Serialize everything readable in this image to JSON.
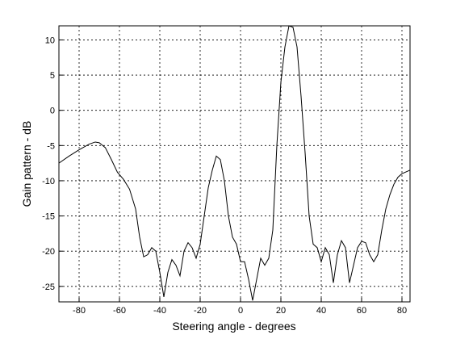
{
  "chart_data": {
    "type": "line",
    "xlabel": "Steering angle - degrees",
    "ylabel": "Gain pattern - dB",
    "x": [
      -90,
      -85,
      -80,
      -75,
      -72,
      -70,
      -67,
      -64,
      -61,
      -58,
      -55,
      -52,
      -50,
      -48,
      -46,
      -44,
      -42,
      -40,
      -38,
      -36,
      -34,
      -32,
      -30,
      -28,
      -26,
      -24,
      -22,
      -20,
      -18,
      -16,
      -14,
      -12,
      -10,
      -8,
      -6,
      -4,
      -2,
      0,
      2,
      4,
      6,
      8,
      10,
      12,
      14,
      16,
      18,
      20,
      22,
      24,
      26,
      28,
      30,
      32,
      34,
      36,
      38,
      40,
      42,
      44,
      46,
      48,
      50,
      52,
      54,
      56,
      58,
      60,
      62,
      64,
      66,
      68,
      70,
      72,
      74,
      76,
      78,
      80,
      84
    ],
    "series": [
      {
        "name": "Gain",
        "color": "#000000",
        "values": [
          -7.5,
          -6.5,
          -5.6,
          -4.8,
          -4.5,
          -4.6,
          -5.3,
          -7,
          -8.8,
          -9.8,
          -11.2,
          -14,
          -18,
          -20.8,
          -20.5,
          -19.5,
          -20,
          -23,
          -26.5,
          -23,
          -21.2,
          -22,
          -23.5,
          -20,
          -18.8,
          -19.5,
          -21,
          -19,
          -15,
          -11,
          -8.5,
          -6.5,
          -7,
          -10,
          -15,
          -18,
          -19,
          -21.5,
          -21.5,
          -24,
          -27,
          -24,
          -21,
          -22,
          -21,
          -17,
          -5,
          4,
          9,
          12,
          11.8,
          9,
          2,
          -6,
          -15,
          -19,
          -19.5,
          -21.5,
          -19.5,
          -20.5,
          -24.5,
          -20.5,
          -18.5,
          -19.5,
          -24.5,
          -22,
          -19.5,
          -18.6,
          -18.8,
          -20.5,
          -21.5,
          -20.5,
          -17,
          -14,
          -12,
          -10.5,
          -9.5,
          -9,
          -8.5
        ]
      }
    ],
    "xlim": [
      -90,
      84
    ],
    "ylim": [
      -27.2,
      12
    ],
    "xticks": [
      -80,
      -60,
      -40,
      -20,
      0,
      20,
      40,
      60,
      80
    ],
    "yticks": [
      -25,
      -20,
      -15,
      -10,
      -5,
      0,
      5,
      10
    ],
    "grid": true
  }
}
